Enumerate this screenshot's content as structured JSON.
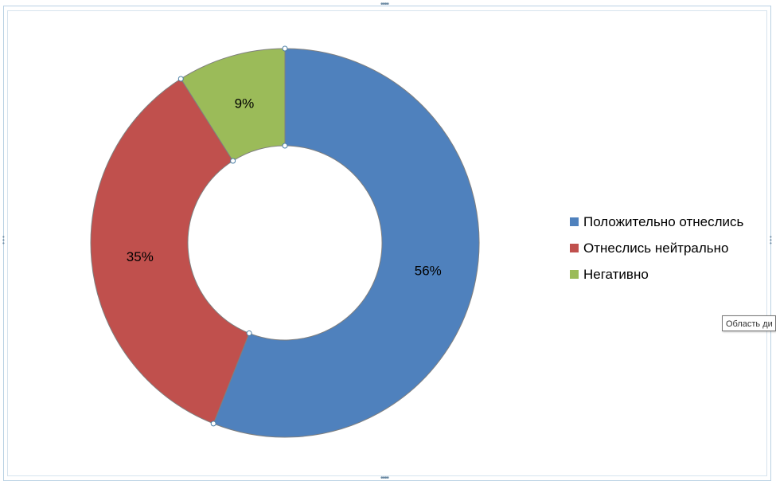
{
  "chart_data": {
    "type": "donut",
    "categories": [
      "Положительно отнеслись",
      "Отнеслись нейтрально",
      "Негативно"
    ],
    "values": [
      56,
      35,
      9
    ],
    "labels": [
      "56%",
      "35%",
      "9%"
    ],
    "colors": [
      "#4f81bd",
      "#c0504d",
      "#9bbb59"
    ],
    "legend_position": "right"
  },
  "tooltip": {
    "text": "Область ди"
  }
}
